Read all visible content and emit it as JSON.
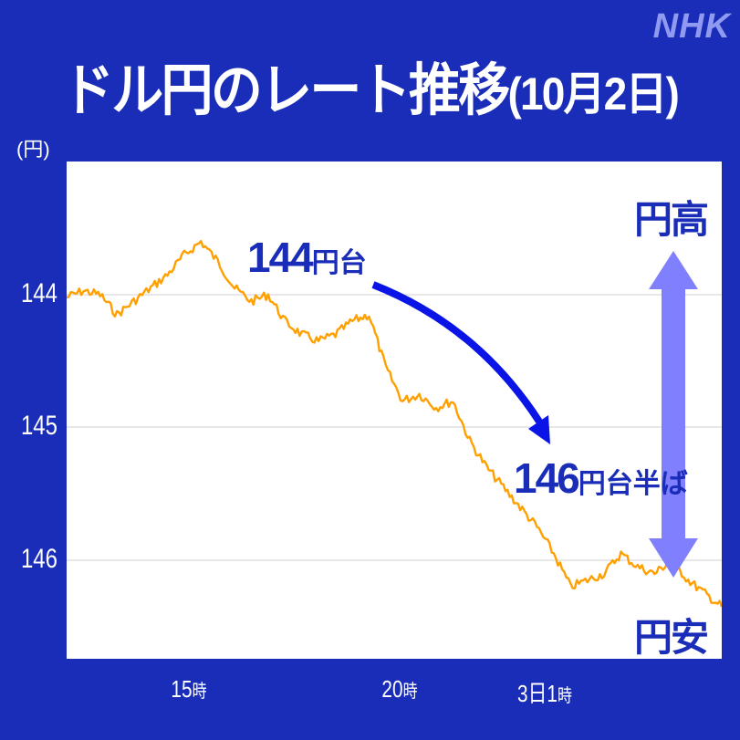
{
  "logo": "NHK",
  "title": {
    "main": "ドル円のレート推移",
    "date": "(10月2日)"
  },
  "axis": {
    "y_unit": "(円)",
    "y_ticks": [
      "144",
      "145",
      "146"
    ],
    "x_ticks": [
      {
        "num": "15",
        "suffix": "時"
      },
      {
        "num": "20",
        "suffix": "時"
      },
      {
        "num": "3日1",
        "suffix": "時"
      }
    ]
  },
  "annotations": {
    "start_num": "144",
    "start_suffix": "円台",
    "end_num": "146",
    "end_suffix": "円台半ば",
    "strong_yen": "円高",
    "weak_yen": "円安"
  },
  "colors": {
    "background": "#1a2db8",
    "line": "#ffa000",
    "arrow": "#0a14e6",
    "range_arrow": "#8080ff",
    "grid": "#d0d0d0",
    "label": "#1a2db8"
  },
  "chart_data": {
    "type": "line",
    "title": "ドル円のレート推移(10月2日)",
    "xlabel": "",
    "ylabel": "(円)",
    "y_inverted": true,
    "ylim": [
      143.0,
      146.75
    ],
    "yticks": [
      144,
      145,
      146
    ],
    "xtick_labels": [
      "15時",
      "20時",
      "3日1時"
    ],
    "grid": "horizontal",
    "series": [
      {
        "name": "USD/JPY",
        "x": [
          "12:00",
          "12:30",
          "13:00",
          "13:30",
          "14:00",
          "14:30",
          "15:00",
          "15:10",
          "15:30",
          "16:00",
          "16:30",
          "17:00",
          "17:30",
          "18:00",
          "18:30",
          "19:00",
          "19:30",
          "19:45",
          "19:55",
          "20:00",
          "20:30",
          "21:00",
          "21:30",
          "22:00",
          "22:30",
          "23:00",
          "23:30",
          "00:00",
          "00:30",
          "01:00",
          "01:10",
          "01:30",
          "02:00",
          "02:30",
          "03:00",
          "03:30",
          "04:00",
          "04:30",
          "05:00",
          "05:20"
        ],
        "values": [
          144.02,
          143.97,
          144.0,
          144.15,
          144.05,
          143.95,
          143.85,
          143.7,
          143.6,
          143.75,
          143.95,
          144.05,
          144.0,
          144.2,
          144.3,
          144.35,
          144.3,
          144.2,
          144.15,
          144.55,
          144.8,
          144.75,
          144.85,
          144.8,
          145.1,
          145.3,
          145.45,
          145.6,
          145.75,
          145.95,
          146.2,
          146.15,
          146.1,
          145.95,
          146.05,
          146.1,
          146.0,
          146.15,
          146.25,
          146.35
        ]
      }
    ]
  }
}
